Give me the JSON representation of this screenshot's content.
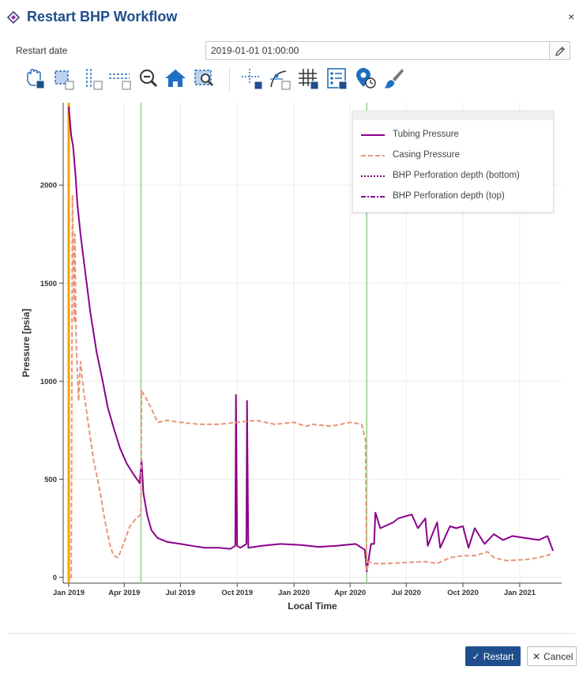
{
  "header": {
    "title": "Restart BHP Workflow",
    "close_label": "×"
  },
  "form": {
    "restart_date_label": "Restart date",
    "restart_date_value": "2019-01-01 01:00:00"
  },
  "toolbar": {
    "tools": [
      "pan-icon",
      "box-select-icon",
      "x-range-select-icon",
      "y-range-select-icon",
      "zoom-icon",
      "home-icon",
      "box-zoom-icon",
      "crosshair-icon",
      "curve-icon",
      "grid-icon",
      "legend-icon",
      "hover-tooltip-icon",
      "paint-brush-icon"
    ]
  },
  "footer": {
    "restart_label": "Restart",
    "cancel_label": "Cancel"
  },
  "colors": {
    "accent": "#1f4e8c",
    "tubing": "#8b008b",
    "casing": "#e8967a",
    "restart_line": "#f5a200",
    "vline": "#8fd08a"
  },
  "chart_data": {
    "type": "line",
    "xlabel": "Local Time",
    "ylabel": "Pressure [psia]",
    "x_ticks": [
      "Jan 2019",
      "Apr 2019",
      "Jul 2019",
      "Oct 2019",
      "Jan 2020",
      "Apr 2020",
      "Jul 2020",
      "Oct 2020",
      "Jan 2021"
    ],
    "y_ticks": [
      "0",
      "500",
      "1000",
      "1500",
      "2000"
    ],
    "ylim": [
      -30,
      2420
    ],
    "xlim": [
      "2018-12-23",
      "2021-03-10"
    ],
    "grid": true,
    "legend_position": "top-right",
    "vertical_lines": [
      {
        "date": "2019-01-01",
        "color": "#f5a200"
      },
      {
        "date": "2019-04-28",
        "color": "#8fd08a"
      },
      {
        "date": "2020-04-28",
        "color": "#8fd08a"
      }
    ],
    "series": [
      {
        "name": "Tubing Pressure",
        "style": "solid",
        "color": "#8b008b",
        "x": [
          "2019-01-01",
          "2019-01-05",
          "2019-01-08",
          "2019-01-12",
          "2019-01-15",
          "2019-01-20",
          "2019-01-28",
          "2019-02-05",
          "2019-02-15",
          "2019-02-25",
          "2019-03-05",
          "2019-03-15",
          "2019-03-25",
          "2019-04-05",
          "2019-04-15",
          "2019-04-26",
          "2019-04-29",
          "2019-05-02",
          "2019-05-08",
          "2019-05-15",
          "2019-05-25",
          "2019-06-10",
          "2019-07-01",
          "2019-07-20",
          "2019-08-10",
          "2019-09-01",
          "2019-09-20",
          "2019-09-28",
          "2019-09-29",
          "2019-10-01",
          "2019-10-06",
          "2019-10-16",
          "2019-10-17",
          "2019-10-19",
          "2019-11-10",
          "2019-12-10",
          "2020-01-10",
          "2020-02-10",
          "2020-03-10",
          "2020-04-10",
          "2020-04-25",
          "2020-04-28",
          "2020-05-05",
          "2020-05-10",
          "2020-05-12",
          "2020-05-20",
          "2020-06-10",
          "2020-06-18",
          "2020-07-10",
          "2020-07-20",
          "2020-08-01",
          "2020-08-05",
          "2020-08-20",
          "2020-08-25",
          "2020-09-10",
          "2020-09-20",
          "2020-10-01",
          "2020-10-10",
          "2020-10-20",
          "2020-11-05",
          "2020-11-20",
          "2020-12-05",
          "2020-12-20",
          "2021-01-10",
          "2021-02-01",
          "2021-02-15",
          "2021-02-24"
        ],
        "y": [
          2400,
          2250,
          2200,
          2050,
          1900,
          1750,
          1550,
          1350,
          1150,
          1000,
          870,
          760,
          660,
          580,
          530,
          480,
          600,
          430,
          320,
          240,
          200,
          180,
          170,
          160,
          150,
          150,
          145,
          160,
          930,
          160,
          150,
          170,
          900,
          150,
          160,
          170,
          165,
          155,
          160,
          170,
          140,
          30,
          170,
          170,
          330,
          250,
          280,
          300,
          320,
          250,
          300,
          160,
          280,
          150,
          260,
          250,
          260,
          150,
          250,
          170,
          220,
          190,
          210,
          200,
          190,
          210,
          135
        ]
      },
      {
        "name": "Casing Pressure",
        "style": "dashed",
        "color": "#e8967a",
        "x": [
          "2019-01-03",
          "2019-01-05",
          "2019-01-07",
          "2019-01-09",
          "2019-01-10",
          "2019-01-11",
          "2019-01-13",
          "2019-01-17",
          "2019-01-20",
          "2019-01-25",
          "2019-02-01",
          "2019-02-10",
          "2019-02-20",
          "2019-03-01",
          "2019-03-10",
          "2019-03-15",
          "2019-03-22",
          "2019-04-01",
          "2019-04-10",
          "2019-04-20",
          "2019-04-28",
          "2019-04-29",
          "2019-05-05",
          "2019-05-15",
          "2019-05-25",
          "2019-06-10",
          "2019-07-01",
          "2019-08-01",
          "2019-09-01",
          "2019-10-01",
          "2019-11-01",
          "2019-12-01",
          "2020-01-01",
          "2020-01-20",
          "2020-02-01",
          "2020-03-01",
          "2020-04-01",
          "2020-04-20",
          "2020-04-26",
          "2020-04-28",
          "2020-05-01",
          "2020-05-10",
          "2020-06-01",
          "2020-07-01",
          "2020-08-01",
          "2020-08-20",
          "2020-09-10",
          "2020-10-01",
          "2020-10-20",
          "2020-11-10",
          "2020-11-20",
          "2020-12-10",
          "2021-01-10",
          "2021-02-01",
          "2021-02-24"
        ],
        "y": [
          0,
          0,
          1950,
          1500,
          1300,
          1750,
          1200,
          900,
          1100,
          950,
          800,
          600,
          450,
          280,
          150,
          110,
          100,
          180,
          260,
          300,
          320,
          950,
          920,
          860,
          790,
          800,
          790,
          780,
          780,
          790,
          800,
          780,
          790,
          770,
          780,
          770,
          790,
          780,
          700,
          30,
          80,
          70,
          70,
          75,
          80,
          70,
          100,
          110,
          110,
          130,
          100,
          85,
          90,
          100,
          120
        ]
      },
      {
        "name": "BHP Perforation depth (bottom)",
        "style": "dotted",
        "color": "#8b008b",
        "x": [],
        "y": []
      },
      {
        "name": "BHP Perforation depth (top)",
        "style": "dashdot",
        "color": "#8b008b",
        "x": [],
        "y": []
      }
    ]
  }
}
